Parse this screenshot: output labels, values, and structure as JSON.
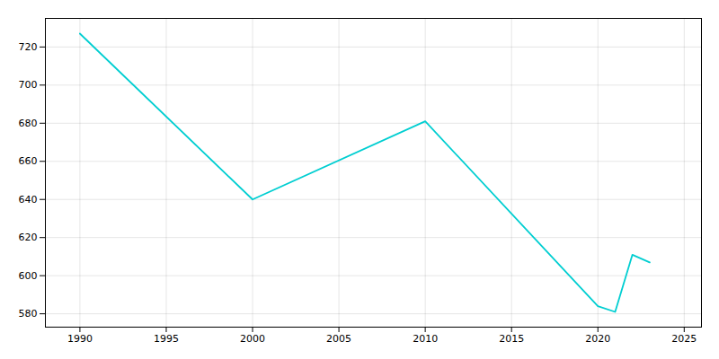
{
  "chart_data": {
    "type": "line",
    "x": [
      1990,
      2000,
      2010,
      2020,
      2021,
      2022,
      2023
    ],
    "values": [
      727,
      640,
      681,
      584,
      581,
      611,
      607
    ],
    "color": "#00CED1",
    "xlim": [
      1988,
      2026
    ],
    "ylim": [
      573,
      735
    ],
    "xticks": [
      1990,
      1995,
      2000,
      2005,
      2010,
      2015,
      2020,
      2025
    ],
    "yticks": [
      580,
      600,
      620,
      640,
      660,
      680,
      700,
      720
    ],
    "grid": true
  }
}
